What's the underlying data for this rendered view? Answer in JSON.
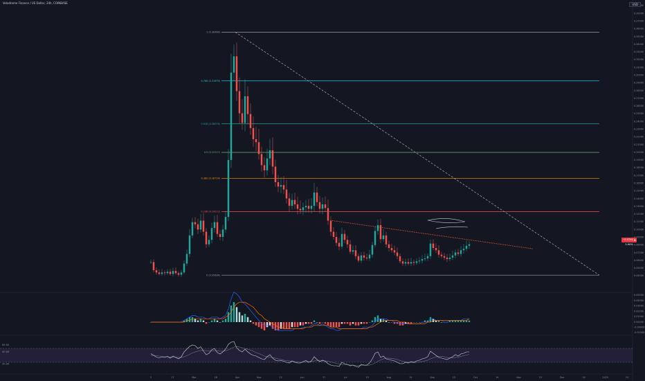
{
  "header": {
    "title": "Velodrome Finance / US Dollar, 24h, COINBASE",
    "currency_badge": "USD"
  },
  "price_badge": "~0.0740 ▲ 3.90%",
  "colors": {
    "up": "#26a69a",
    "down": "#ef5350",
    "background": "#141722",
    "trend": "#ff5a36",
    "macd_line": "#2962ff",
    "signal_line": "#ff6d00",
    "rsi_band": "#7e57c2"
  },
  "chart_data": {
    "type": "candlestick",
    "title": "Velodrome Finance / US Dollar",
    "x_ticks": [
      "5",
      "17",
      "Mar",
      "18",
      "Apr",
      "Nov",
      "12",
      "Jun",
      "17",
      "Jul",
      "15",
      "Aug",
      "15",
      "Sep",
      "13",
      "Oct",
      "14",
      "Nov",
      "15",
      "Dec",
      "16",
      "2025",
      "13"
    ],
    "y_ticks": [
      "0.40000",
      "0.39000",
      "0.37000",
      "0.36000",
      "0.35000",
      "0.34000",
      "0.33000",
      "0.32000",
      "0.31000",
      "0.30000",
      "0.29000",
      "0.28000",
      "0.27000",
      "0.26000",
      "0.25000",
      "0.24000",
      "0.23000",
      "0.22000",
      "0.21000",
      "0.20000",
      "0.19000",
      "0.18000",
      "0.17000",
      "0.16000",
      "0.15000",
      "0.14000",
      "0.13000",
      "0.12000",
      "0.11000",
      "0.10000",
      "0.09000",
      "0.08000",
      "0.07000",
      "0.06000",
      "0.05000",
      "0.04000"
    ],
    "ylim": [
      0.035,
      0.4
    ],
    "fib_levels": [
      {
        "label": "1 (0.38466)",
        "value": 0.38466,
        "color": "#9e9e9e"
      },
      {
        "label": "0.786 (0.31879)",
        "value": 0.31879,
        "color": "#26c6da"
      },
      {
        "label": "0.618 (0.26076)",
        "value": 0.26076,
        "color": "#26a69a"
      },
      {
        "label": "0.5 (0.22217)",
        "value": 0.22217,
        "color": "#66bb6a"
      },
      {
        "label": "0.382 (0.18714)",
        "value": 0.18714,
        "color": "#ff9800"
      },
      {
        "label": "0.236 (0.14213)",
        "value": 0.14213,
        "color": "#ef5350"
      },
      {
        "label": "0 (0.05634)",
        "value": 0.05634,
        "color": "#9e9e9e"
      }
    ],
    "price_series": [
      0.074,
      0.063,
      0.06,
      0.058,
      0.06,
      0.059,
      0.061,
      0.058,
      0.062,
      0.059,
      0.057,
      0.06,
      0.072,
      0.085,
      0.11,
      0.128,
      0.125,
      0.118,
      0.13,
      0.115,
      0.098,
      0.104,
      0.12,
      0.128,
      0.112,
      0.108,
      0.118,
      0.135,
      0.212,
      0.33,
      0.352,
      0.305,
      0.275,
      0.262,
      0.298,
      0.274,
      0.255,
      0.24,
      0.236,
      0.22,
      0.205,
      0.198,
      0.214,
      0.225,
      0.203,
      0.182,
      0.176,
      0.178,
      0.172,
      0.16,
      0.15,
      0.158,
      0.152,
      0.146,
      0.144,
      0.148,
      0.15,
      0.146,
      0.15,
      0.168,
      0.155,
      0.146,
      0.152,
      0.147,
      0.13,
      0.115,
      0.108,
      0.1,
      0.095,
      0.112,
      0.104,
      0.098,
      0.088,
      0.09,
      0.082,
      0.076,
      0.083,
      0.08,
      0.079,
      0.084,
      0.097,
      0.116,
      0.124,
      0.105,
      0.11,
      0.098,
      0.093,
      0.09,
      0.087,
      0.082,
      0.075,
      0.072,
      0.074,
      0.072,
      0.074,
      0.073,
      0.075,
      0.076,
      0.078,
      0.079,
      0.082,
      0.099,
      0.093,
      0.09,
      0.084,
      0.082,
      0.08,
      0.078,
      0.08,
      0.083,
      0.087,
      0.085,
      0.09,
      0.092,
      0.096,
      0.098
    ],
    "trendlines": [
      {
        "name": "descending",
        "from": [
          0.38466
        ],
        "to": [
          0.05634
        ],
        "style": "dashed"
      },
      {
        "name": "resistance",
        "from": [
          0.13
        ],
        "to": [
          0.092
        ],
        "style": "dotted"
      }
    ],
    "macd": {
      "histogram": [
        0,
        0,
        0,
        0,
        0,
        0,
        0,
        0,
        0,
        0,
        0,
        0,
        1,
        2,
        3,
        3,
        2,
        1,
        2,
        1,
        -1,
        0,
        1,
        2,
        1,
        0,
        1,
        2,
        6,
        10,
        12,
        9,
        6,
        4,
        5,
        3,
        1,
        -1,
        -2,
        -3,
        -4,
        -5,
        -3,
        -2,
        -4,
        -5,
        -5,
        -4,
        -4,
        -4,
        -4,
        -3,
        -3,
        -3,
        -2,
        -2,
        -1,
        -1,
        -1,
        1,
        0,
        -1,
        0,
        -1,
        -2,
        -3,
        -3,
        -3,
        -3,
        -1,
        -1,
        -1,
        -2,
        -1,
        -2,
        -2,
        -1,
        -1,
        -1,
        0,
        1,
        3,
        4,
        2,
        2,
        1,
        0,
        0,
        -1,
        -1,
        -2,
        -2,
        -1,
        -1,
        -1,
        0,
        0,
        0,
        0,
        1,
        1,
        3,
        2,
        1,
        1,
        0,
        0,
        0,
        1,
        1,
        1,
        1,
        1,
        1,
        1,
        1
      ],
      "macd_line": [
        0,
        0,
        0,
        0,
        0,
        0,
        0,
        0,
        0,
        0,
        0,
        0,
        1,
        2,
        3,
        4,
        4,
        3,
        3,
        3,
        2,
        2,
        3,
        3,
        3,
        2,
        3,
        4,
        8,
        14,
        18,
        17,
        15,
        12,
        11,
        9,
        7,
        5,
        3,
        1,
        -1,
        -2,
        -2,
        -2,
        -3,
        -4,
        -5,
        -5,
        -5,
        -5,
        -5,
        -5,
        -4,
        -4,
        -4,
        -3,
        -3,
        -3,
        -2,
        -1,
        -1,
        -2,
        -1,
        -2,
        -3,
        -4,
        -4,
        -5,
        -5,
        -4,
        -4,
        -4,
        -4,
        -4,
        -4,
        -4,
        -4,
        -3,
        -3,
        -3,
        -2,
        0,
        2,
        2,
        2,
        2,
        1,
        1,
        0,
        0,
        -1,
        -1,
        -1,
        -1,
        -1,
        -1,
        -1,
        -1,
        0,
        0,
        0,
        2,
        2,
        1,
        1,
        1,
        0,
        0,
        1,
        1,
        1,
        1,
        1,
        2,
        2,
        2
      ],
      "signal_line": [
        0,
        0,
        0,
        0,
        0,
        0,
        0,
        0,
        0,
        0,
        0,
        0,
        0,
        1,
        1,
        2,
        2,
        2,
        2,
        2,
        2,
        2,
        2,
        2,
        2,
        2,
        2,
        3,
        4,
        6,
        9,
        11,
        12,
        12,
        12,
        11,
        10,
        9,
        7,
        5,
        4,
        2,
        1,
        0,
        -1,
        -2,
        -3,
        -3,
        -4,
        -4,
        -4,
        -4,
        -4,
        -4,
        -4,
        -4,
        -3,
        -3,
        -3,
        -2,
        -2,
        -2,
        -2,
        -2,
        -2,
        -3,
        -3,
        -3,
        -4,
        -4,
        -4,
        -4,
        -4,
        -4,
        -4,
        -4,
        -4,
        -4,
        -4,
        -3,
        -3,
        -2,
        -1,
        0,
        1,
        1,
        1,
        1,
        1,
        1,
        0,
        0,
        0,
        -1,
        -1,
        -1,
        -1,
        -1,
        -1,
        -1,
        0,
        0,
        1,
        1,
        1,
        1,
        1,
        1,
        1,
        1,
        1,
        1,
        1,
        1,
        1,
        2
      ],
      "y_ticks": [
        "0.05000",
        "0.04000",
        "0.03000",
        "0.02000",
        "0.01000",
        "0.00000",
        "-0.00000",
        "-0.01000"
      ]
    },
    "rsi": {
      "series": [
        55,
        50,
        45,
        43,
        45,
        44,
        47,
        42,
        48,
        44,
        40,
        46,
        60,
        68,
        76,
        80,
        78,
        70,
        75,
        62,
        52,
        56,
        66,
        70,
        58,
        54,
        60,
        68,
        82,
        88,
        90,
        72,
        64,
        60,
        68,
        60,
        54,
        50,
        48,
        44,
        40,
        38,
        46,
        52,
        42,
        36,
        34,
        35,
        33,
        30,
        28,
        34,
        30,
        28,
        28,
        32,
        35,
        30,
        34,
        46,
        38,
        32,
        36,
        33,
        26,
        22,
        20,
        20,
        18,
        30,
        26,
        24,
        20,
        22,
        18,
        16,
        24,
        22,
        22,
        28,
        40,
        56,
        60,
        44,
        48,
        40,
        38,
        36,
        34,
        30,
        26,
        26,
        30,
        28,
        32,
        30,
        34,
        36,
        40,
        42,
        46,
        62,
        56,
        50,
        44,
        42,
        40,
        38,
        42,
        46,
        52,
        48,
        54,
        56,
        60,
        60
      ],
      "ma_series": [
        50,
        50,
        49,
        48,
        47,
        46,
        46,
        45,
        45,
        45,
        44,
        44,
        46,
        49,
        53,
        57,
        60,
        62,
        64,
        65,
        63,
        62,
        63,
        64,
        63,
        62,
        62,
        63,
        66,
        70,
        74,
        75,
        74,
        72,
        70,
        68,
        65,
        62,
        58,
        55,
        52,
        48,
        46,
        45,
        44,
        42,
        40,
        38,
        36,
        35,
        34,
        33,
        32,
        31,
        30,
        30,
        31,
        31,
        32,
        34,
        35,
        34,
        34,
        34,
        33,
        31,
        29,
        27,
        25,
        24,
        23,
        23,
        22,
        22,
        21,
        21,
        21,
        21,
        21,
        22,
        24,
        28,
        33,
        37,
        40,
        42,
        42,
        41,
        40,
        38,
        35,
        33,
        31,
        30,
        30,
        29,
        30,
        31,
        32,
        34,
        36,
        40,
        43,
        46,
        47,
        47,
        46,
        44,
        43,
        43,
        44,
        45,
        47,
        49,
        51,
        53
      ],
      "ticks": [
        "80.00",
        "40.00",
        "20.00"
      ],
      "band": [
        30,
        70
      ]
    }
  }
}
